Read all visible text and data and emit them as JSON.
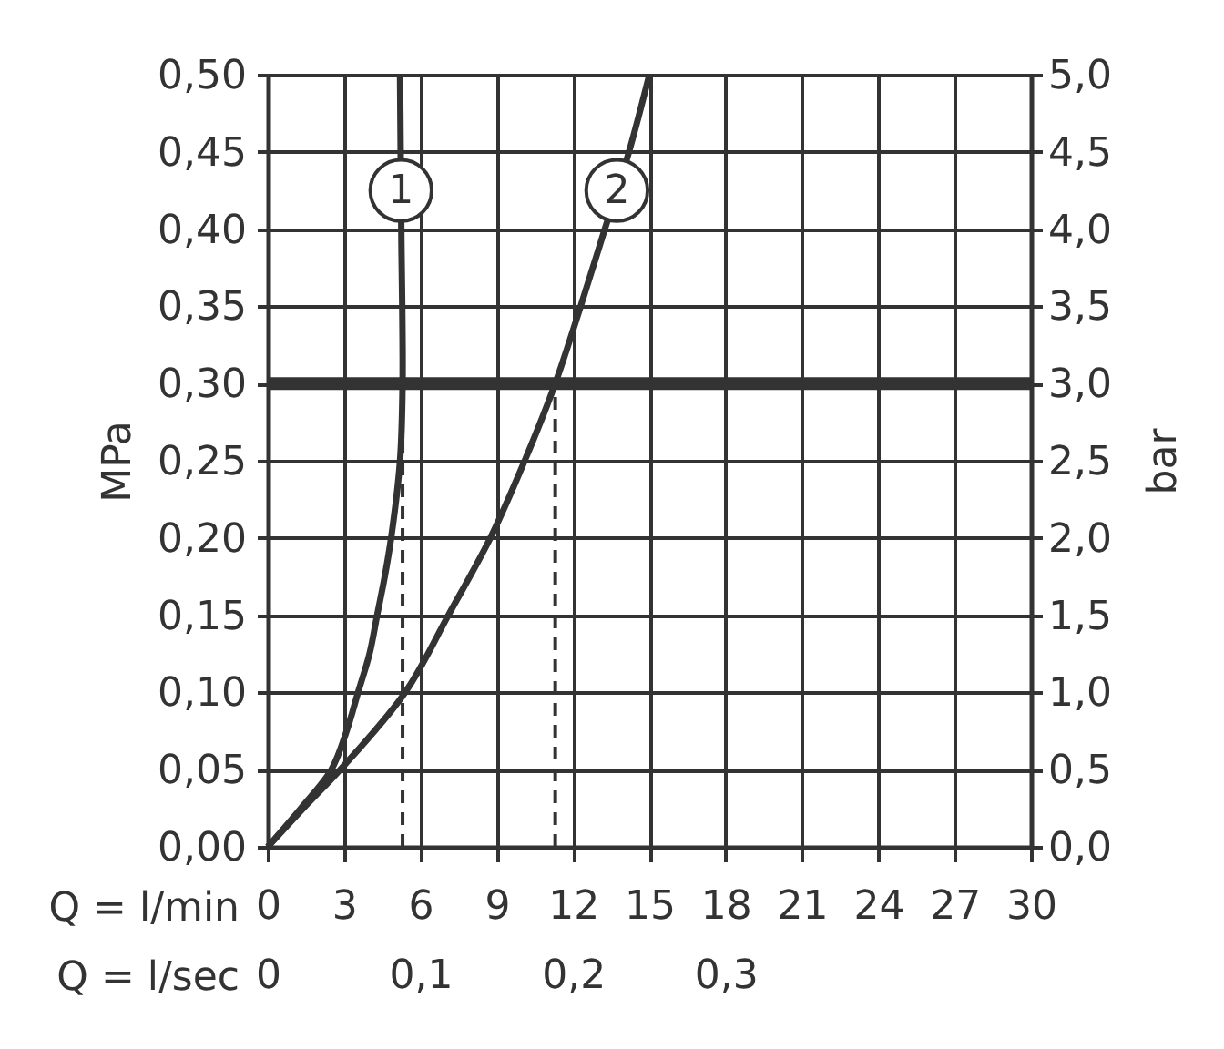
{
  "chart_data": {
    "type": "line",
    "xlabel": "Q = l/min",
    "ylabel": "MPa",
    "y2label": "bar",
    "x2label": "Q = l/sec",
    "series": [
      {
        "name": "1",
        "color": "#333333",
        "x": [
          0,
          1.3,
          2.5,
          3.1,
          3.55,
          4.0,
          4.3,
          4.6,
          4.85,
          5.2,
          5.3,
          5.25,
          5.2
        ],
        "values": [
          0,
          0.025,
          0.05,
          0.075,
          0.1,
          0.125,
          0.15,
          0.175,
          0.2,
          0.25,
          0.3,
          0.4,
          0.5
        ]
      },
      {
        "name": "2",
        "color": "#333333",
        "x": [
          0,
          1.4,
          2.85,
          5.4,
          7.1,
          8.75,
          10.1,
          11.3,
          12.3,
          13.25,
          14.2,
          15
        ],
        "values": [
          0,
          0.025,
          0.05,
          0.1,
          0.15,
          0.2,
          0.25,
          0.3,
          0.35,
          0.4,
          0.45,
          0.5
        ]
      },
      {
        "type": "line",
        "line_style": "dashed",
        "color": "#333333",
        "x": [
          5.3,
          5.3
        ],
        "values": [
          0,
          0.3
        ]
      },
      {
        "type": "line",
        "line_style": "dashed",
        "color": "#333333",
        "x": [
          11.3,
          11.3
        ],
        "values": [
          0,
          0.3
        ]
      }
    ],
    "xlim": [
      0,
      30
    ],
    "xticks": [
      0,
      3,
      6,
      9,
      12,
      15,
      18,
      21,
      24,
      27,
      30
    ],
    "ylim": [
      0,
      0.5
    ],
    "yticks": [
      {
        "value": 0,
        "label": "0,00"
      },
      {
        "value": 0.05,
        "label": "0,05"
      },
      {
        "value": 0.1,
        "label": "0,10"
      },
      {
        "value": 0.15,
        "label": "0,15"
      },
      {
        "value": 0.2,
        "label": "0,20"
      },
      {
        "value": 0.25,
        "label": "0,25"
      },
      {
        "value": 0.3,
        "label": "0,30"
      },
      {
        "value": 0.35,
        "label": "0,35"
      },
      {
        "value": 0.4,
        "label": "0,40"
      },
      {
        "value": 0.45,
        "label": "0,45"
      },
      {
        "value": 0.5,
        "label": "0,50"
      }
    ],
    "y2lim": [
      0,
      5
    ],
    "y2ticks": [
      {
        "value": 0,
        "label": "0,0"
      },
      {
        "value": 0.5,
        "label": "0,5"
      },
      {
        "value": 1,
        "label": "1,0"
      },
      {
        "value": 1.5,
        "label": "1,5"
      },
      {
        "value": 2,
        "label": "2,0"
      },
      {
        "value": 2.5,
        "label": "2,5"
      },
      {
        "value": 3,
        "label": "3,0"
      },
      {
        "value": 3.5,
        "label": "3,5"
      },
      {
        "value": 4,
        "label": "4,0"
      },
      {
        "value": 4.5,
        "label": "4,5"
      },
      {
        "value": 5,
        "label": "5,0"
      }
    ],
    "x2lim": [
      0,
      0.5
    ],
    "x2ticks": [
      0,
      {
        "value": 0.1,
        "label": "0,1"
      },
      {
        "value": 0.2,
        "label": "0,2"
      },
      {
        "value": 0.3,
        "label": "0,3"
      }
    ],
    "ref_lines": [
      {
        "axis": "y",
        "value": 0.3,
        "color": "#333333"
      }
    ],
    "grid": true
  }
}
